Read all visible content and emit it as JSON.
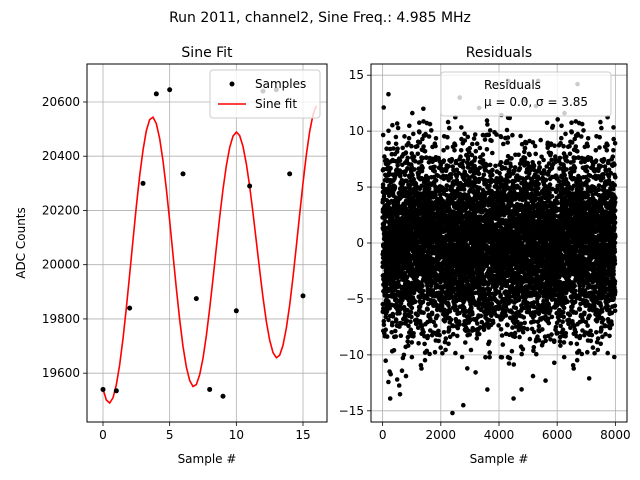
{
  "suptitle": "Run 2011, channel2, Sine Freq.: 4.985 MHz",
  "chart_data": [
    {
      "type": "line",
      "title": "Sine Fit",
      "xlabel": "Sample #",
      "ylabel": "ADC Counts",
      "xlim": [
        -1.2,
        16.8
      ],
      "ylim": [
        19420,
        20740
      ],
      "xticks": [
        0,
        5,
        10,
        15
      ],
      "yticks": [
        19600,
        19800,
        20000,
        20200,
        20400,
        20600
      ],
      "grid": true,
      "legend": "top-right",
      "series": [
        {
          "name": "Samples",
          "kind": "scatter",
          "color": "#000000",
          "x": [
            0,
            1,
            2,
            3,
            4,
            5,
            6,
            7,
            8,
            9,
            10,
            11,
            12,
            13,
            14,
            15
          ],
          "y": [
            19540,
            19535,
            19840,
            20300,
            20630,
            20645,
            20335,
            19875,
            19540,
            19515,
            19830,
            20290,
            20640,
            20645,
            20335,
            19885
          ]
        },
        {
          "name": "Sine fit",
          "kind": "line",
          "color": "#ff0000",
          "x": [
            0,
            0.25,
            0.5,
            0.75,
            1,
            1.25,
            1.5,
            1.75,
            2,
            2.25,
            2.5,
            2.75,
            3,
            3.25,
            3.5,
            3.75,
            4,
            4.25,
            4.5,
            4.75,
            5,
            5.25,
            5.5,
            5.75,
            6,
            6.25,
            6.5,
            6.75,
            7,
            7.25,
            7.5,
            7.75,
            8,
            8.25,
            8.5,
            8.75,
            9,
            9.25,
            9.5,
            9.75,
            10,
            10.25,
            10.5,
            10.75,
            11,
            11.25,
            11.5,
            11.75,
            12,
            12.25,
            12.5,
            12.75,
            13,
            13.25,
            13.5,
            13.75,
            14,
            14.25,
            14.5,
            14.75,
            15,
            15.25,
            15.5,
            15.75,
            16
          ],
          "y": [
            19542,
            19501,
            19490,
            19509,
            19557,
            19631,
            19727,
            19840,
            19964,
            20091,
            20215,
            20328,
            20422,
            20494,
            20535,
            20544,
            20520,
            20465,
            20383,
            20280,
            20162,
            20037,
            19913,
            19798,
            19699,
            19623,
            19573,
            19551,
            19558,
            19594,
            19655,
            19738,
            19838,
            19948,
            20063,
            20175,
            20278,
            20365,
            20432,
            20474,
            20489,
            20476,
            20436,
            20372,
            20289,
            20191,
            20086,
            19980,
            19879,
            19791,
            19722,
            19676,
            19657,
            19666,
            19703,
            19766,
            19851,
            19954,
            20068,
            20186,
            20301,
            20405,
            20491,
            20553,
            20586
          ]
        }
      ]
    },
    {
      "type": "scatter",
      "title": "Residuals",
      "xlabel": "Sample #",
      "ylabel": "",
      "xlim": [
        -400,
        8400
      ],
      "ylim": [
        -16,
        16
      ],
      "xticks": [
        0,
        2000,
        4000,
        6000,
        8000
      ],
      "yticks": [
        -15,
        -10,
        -5,
        0,
        5,
        10,
        15
      ],
      "grid": true,
      "legend": "top-right",
      "n_points": 8000,
      "mean": 0.0,
      "sigma": 3.85,
      "series": [
        {
          "name": "Residuals",
          "legend_line2": "μ = 0.0, σ = 3.85",
          "color": "#000000",
          "outliers_x": [
            2400,
            2650,
            4500,
            6700,
            500,
            1400,
            3600,
            5600,
            200,
            7100
          ],
          "outliers_y": [
            -15.2,
            13.0,
            -13.9,
            14.2,
            -12.2,
            12.0,
            -13.1,
            -12.3,
            13.3,
            -12.1
          ]
        }
      ]
    }
  ]
}
